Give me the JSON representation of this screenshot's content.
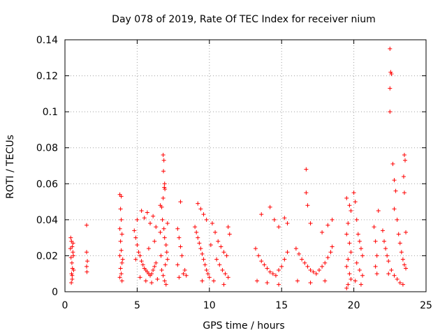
{
  "chart_data": {
    "type": "scatter",
    "title": "Day 078 of 2019, Rate Of TEC Index for receiver nium",
    "xlabel": "GPS time / hours",
    "ylabel": "ROTI / TECUs",
    "xlim": [
      0,
      25
    ],
    "ylim": [
      0,
      0.14
    ],
    "xticks": [
      0,
      5,
      10,
      15,
      20,
      25
    ],
    "yticks": [
      0,
      0.02,
      0.04,
      0.06,
      0.08,
      0.1,
      0.12,
      0.14
    ],
    "grid": true,
    "marker": "+",
    "color": "#ff0000",
    "series": [
      {
        "name": "ROTI",
        "points": [
          [
            0.4,
            0.03
          ],
          [
            0.45,
            0.028
          ],
          [
            0.5,
            0.025
          ],
          [
            0.55,
            0.022
          ],
          [
            0.42,
            0.019
          ],
          [
            0.48,
            0.016
          ],
          [
            0.52,
            0.013
          ],
          [
            0.46,
            0.01
          ],
          [
            0.5,
            0.007
          ],
          [
            0.44,
            0.005
          ],
          [
            0.56,
            0.027
          ],
          [
            0.58,
            0.02
          ],
          [
            0.38,
            0.024
          ],
          [
            0.6,
            0.012
          ],
          [
            0.5,
            0.009
          ],
          [
            1.5,
            0.037
          ],
          [
            1.5,
            0.022
          ],
          [
            1.55,
            0.017
          ],
          [
            1.5,
            0.014
          ],
          [
            1.52,
            0.011
          ],
          [
            3.8,
            0.054
          ],
          [
            3.9,
            0.053
          ],
          [
            3.85,
            0.046
          ],
          [
            3.9,
            0.04
          ],
          [
            3.8,
            0.035
          ],
          [
            3.95,
            0.032
          ],
          [
            3.85,
            0.028
          ],
          [
            3.9,
            0.023
          ],
          [
            3.8,
            0.02
          ],
          [
            3.95,
            0.016
          ],
          [
            3.85,
            0.013
          ],
          [
            3.9,
            0.01
          ],
          [
            3.8,
            0.008
          ],
          [
            3.95,
            0.006
          ],
          [
            4.0,
            0.018
          ],
          [
            4.8,
            0.034
          ],
          [
            4.9,
            0.03
          ],
          [
            5.0,
            0.026
          ],
          [
            5.1,
            0.022
          ],
          [
            5.2,
            0.02
          ],
          [
            5.3,
            0.017
          ],
          [
            5.4,
            0.015
          ],
          [
            5.5,
            0.013
          ],
          [
            5.6,
            0.012
          ],
          [
            5.7,
            0.011
          ],
          [
            5.8,
            0.01
          ],
          [
            5.9,
            0.009
          ],
          [
            6.0,
            0.01
          ],
          [
            6.1,
            0.012
          ],
          [
            6.2,
            0.014
          ],
          [
            6.3,
            0.016
          ],
          [
            5.0,
            0.04
          ],
          [
            5.3,
            0.045
          ],
          [
            5.5,
            0.041
          ],
          [
            5.7,
            0.044
          ],
          [
            5.9,
            0.038
          ],
          [
            6.1,
            0.042
          ],
          [
            6.3,
            0.036
          ],
          [
            5.2,
            0.008
          ],
          [
            5.6,
            0.006
          ],
          [
            6.0,
            0.005
          ],
          [
            6.4,
            0.007
          ],
          [
            4.9,
            0.018
          ],
          [
            5.8,
            0.024
          ],
          [
            6.2,
            0.028
          ],
          [
            6.6,
            0.048
          ],
          [
            6.7,
            0.047
          ],
          [
            6.8,
            0.076
          ],
          [
            6.85,
            0.073
          ],
          [
            6.82,
            0.067
          ],
          [
            6.9,
            0.06
          ],
          [
            6.88,
            0.058
          ],
          [
            6.92,
            0.057
          ],
          [
            6.8,
            0.052
          ],
          [
            6.75,
            0.04
          ],
          [
            6.85,
            0.035
          ],
          [
            6.9,
            0.03
          ],
          [
            7.0,
            0.026
          ],
          [
            7.05,
            0.022
          ],
          [
            7.1,
            0.018
          ],
          [
            6.95,
            0.015
          ],
          [
            6.7,
            0.012
          ],
          [
            6.8,
            0.009
          ],
          [
            6.9,
            0.006
          ],
          [
            7.0,
            0.004
          ],
          [
            6.6,
            0.033
          ],
          [
            7.1,
            0.038
          ],
          [
            6.65,
            0.02
          ],
          [
            8.0,
            0.05
          ],
          [
            7.8,
            0.035
          ],
          [
            7.9,
            0.03
          ],
          [
            8.0,
            0.025
          ],
          [
            8.1,
            0.02
          ],
          [
            7.8,
            0.015
          ],
          [
            8.2,
            0.01
          ],
          [
            7.9,
            0.008
          ],
          [
            8.3,
            0.012
          ],
          [
            8.4,
            0.009
          ],
          [
            9.0,
            0.036
          ],
          [
            9.1,
            0.033
          ],
          [
            9.2,
            0.03
          ],
          [
            9.3,
            0.027
          ],
          [
            9.4,
            0.024
          ],
          [
            9.5,
            0.021
          ],
          [
            9.6,
            0.018
          ],
          [
            9.7,
            0.015
          ],
          [
            9.8,
            0.012
          ],
          [
            9.9,
            0.01
          ],
          [
            10.0,
            0.008
          ],
          [
            9.2,
            0.049
          ],
          [
            9.4,
            0.046
          ],
          [
            9.6,
            0.043
          ],
          [
            9.8,
            0.04
          ],
          [
            9.5,
            0.006
          ],
          [
            10.2,
            0.038
          ],
          [
            10.4,
            0.033
          ],
          [
            10.6,
            0.028
          ],
          [
            10.8,
            0.025
          ],
          [
            11.0,
            0.022
          ],
          [
            11.2,
            0.02
          ],
          [
            10.5,
            0.018
          ],
          [
            10.7,
            0.015
          ],
          [
            10.9,
            0.012
          ],
          [
            11.1,
            0.01
          ],
          [
            11.3,
            0.008
          ],
          [
            10.3,
            0.006
          ],
          [
            11.0,
            0.004
          ],
          [
            11.3,
            0.036
          ],
          [
            11.4,
            0.032
          ],
          [
            10.1,
            0.026
          ],
          [
            13.2,
            0.024
          ],
          [
            13.4,
            0.02
          ],
          [
            13.6,
            0.017
          ],
          [
            13.8,
            0.015
          ],
          [
            14.0,
            0.013
          ],
          [
            14.2,
            0.011
          ],
          [
            14.4,
            0.01
          ],
          [
            14.6,
            0.009
          ],
          [
            14.8,
            0.012
          ],
          [
            15.0,
            0.014
          ],
          [
            15.2,
            0.018
          ],
          [
            15.4,
            0.022
          ],
          [
            13.6,
            0.043
          ],
          [
            14.2,
            0.047
          ],
          [
            14.5,
            0.04
          ],
          [
            14.8,
            0.036
          ],
          [
            15.2,
            0.041
          ],
          [
            15.4,
            0.038
          ],
          [
            13.3,
            0.006
          ],
          [
            14.0,
            0.005
          ],
          [
            14.8,
            0.004
          ],
          [
            16.0,
            0.024
          ],
          [
            16.2,
            0.021
          ],
          [
            16.4,
            0.018
          ],
          [
            16.6,
            0.016
          ],
          [
            16.8,
            0.014
          ],
          [
            17.0,
            0.012
          ],
          [
            17.2,
            0.011
          ],
          [
            17.4,
            0.01
          ],
          [
            17.6,
            0.012
          ],
          [
            17.8,
            0.014
          ],
          [
            18.0,
            0.016
          ],
          [
            18.2,
            0.019
          ],
          [
            18.4,
            0.022
          ],
          [
            18.5,
            0.025
          ],
          [
            16.7,
            0.068
          ],
          [
            16.7,
            0.055
          ],
          [
            16.8,
            0.048
          ],
          [
            17.0,
            0.038
          ],
          [
            17.8,
            0.033
          ],
          [
            18.2,
            0.037
          ],
          [
            18.5,
            0.04
          ],
          [
            16.1,
            0.006
          ],
          [
            17.0,
            0.005
          ],
          [
            18.0,
            0.006
          ],
          [
            19.5,
            0.052
          ],
          [
            19.7,
            0.048
          ],
          [
            19.8,
            0.045
          ],
          [
            19.6,
            0.038
          ],
          [
            19.5,
            0.032
          ],
          [
            19.7,
            0.027
          ],
          [
            19.8,
            0.022
          ],
          [
            19.6,
            0.018
          ],
          [
            19.5,
            0.014
          ],
          [
            19.7,
            0.01
          ],
          [
            19.8,
            0.007
          ],
          [
            19.6,
            0.004
          ],
          [
            19.5,
            0.002
          ],
          [
            20.0,
            0.055
          ],
          [
            20.1,
            0.05
          ],
          [
            20.2,
            0.04
          ],
          [
            20.3,
            0.032
          ],
          [
            20.4,
            0.028
          ],
          [
            20.5,
            0.024
          ],
          [
            20.6,
            0.02
          ],
          [
            20.2,
            0.016
          ],
          [
            20.4,
            0.012
          ],
          [
            20.6,
            0.009
          ],
          [
            20.1,
            0.006
          ],
          [
            20.5,
            0.004
          ],
          [
            21.4,
            0.036
          ],
          [
            21.5,
            0.028
          ],
          [
            21.6,
            0.02
          ],
          [
            21.5,
            0.014
          ],
          [
            21.6,
            0.01
          ],
          [
            21.7,
            0.045
          ],
          [
            22.0,
            0.034
          ],
          [
            22.1,
            0.028
          ],
          [
            22.2,
            0.024
          ],
          [
            22.3,
            0.02
          ],
          [
            22.4,
            0.017
          ],
          [
            22.5,
            0.135
          ],
          [
            22.55,
            0.122
          ],
          [
            22.6,
            0.121
          ],
          [
            22.5,
            0.113
          ],
          [
            22.5,
            0.1
          ],
          [
            22.7,
            0.071
          ],
          [
            22.8,
            0.062
          ],
          [
            22.9,
            0.056
          ],
          [
            22.8,
            0.046
          ],
          [
            23.0,
            0.04
          ],
          [
            23.1,
            0.032
          ],
          [
            23.2,
            0.027
          ],
          [
            23.3,
            0.022
          ],
          [
            23.4,
            0.018
          ],
          [
            23.5,
            0.015
          ],
          [
            23.6,
            0.013
          ],
          [
            22.6,
            0.012
          ],
          [
            22.8,
            0.009
          ],
          [
            23.0,
            0.007
          ],
          [
            23.2,
            0.005
          ],
          [
            23.4,
            0.004
          ],
          [
            23.5,
            0.076
          ],
          [
            23.55,
            0.073
          ],
          [
            23.45,
            0.064
          ],
          [
            23.5,
            0.055
          ],
          [
            23.6,
            0.033
          ],
          [
            22.4,
            0.01
          ]
        ]
      }
    ]
  }
}
